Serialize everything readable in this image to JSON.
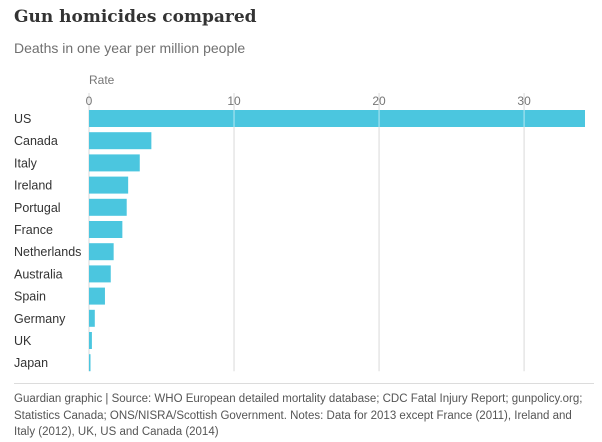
{
  "title": "Gun homicides compared",
  "subtitle": "Deaths in one year per million people",
  "chart_data": {
    "type": "bar",
    "orientation": "horizontal",
    "xlabel": "Rate",
    "xlim": [
      0,
      34.2
    ],
    "xticks": [
      0,
      10,
      20,
      30
    ],
    "grid": true,
    "categories": [
      "US",
      "Canada",
      "Italy",
      "Ireland",
      "Portugal",
      "France",
      "Netherlands",
      "Australia",
      "Spain",
      "Germany",
      "UK",
      "Japan"
    ],
    "values": [
      34.2,
      4.3,
      3.5,
      2.7,
      2.6,
      2.3,
      1.7,
      1.5,
      1.1,
      0.4,
      0.2,
      0.07
    ],
    "bar_color": "#4bc6df"
  },
  "footer": "Guardian graphic | Source: WHO European detailed mortality database; CDC Fatal Injury Report; gunpolicy.org; Statistics Canada; ONS/NISRA/Scottish Government. Notes: Data for 2013 except France (2011), Ireland and Italy (2012), UK, US and Canada (2014)"
}
